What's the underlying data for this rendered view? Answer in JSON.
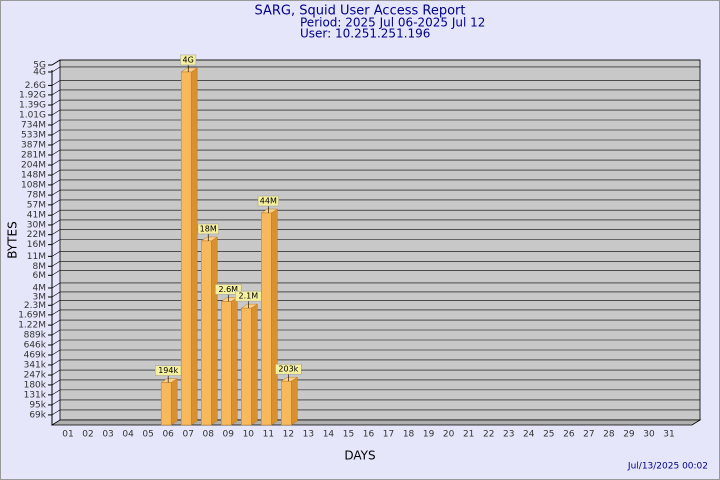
{
  "chart_data": {
    "type": "bar",
    "title": "SARG, Squid User Access Report",
    "subtitle": "Period: 2025 Jul 06-2025 Jul 12",
    "user": "User: 10.251.251.196",
    "xlabel": "DAYS",
    "ylabel": "BYTES",
    "footer": "Jul/13/2025 00:02",
    "categories": [
      "01",
      "02",
      "03",
      "04",
      "05",
      "06",
      "07",
      "08",
      "09",
      "10",
      "11",
      "12",
      "13",
      "14",
      "15",
      "16",
      "17",
      "18",
      "19",
      "20",
      "21",
      "22",
      "23",
      "24",
      "25",
      "26",
      "27",
      "28",
      "29",
      "30",
      "31"
    ],
    "values": [
      null,
      null,
      null,
      null,
      null,
      194000,
      4000000000,
      18000000,
      2600000,
      2100000,
      44000000,
      203000,
      null,
      null,
      null,
      null,
      null,
      null,
      null,
      null,
      null,
      null,
      null,
      null,
      null,
      null,
      null,
      null,
      null,
      null,
      null
    ],
    "value_labels": [
      null,
      null,
      null,
      null,
      null,
      "194k",
      "4G",
      "18M",
      "2.6M",
      "2.1M",
      "44M",
      "203k",
      null,
      null,
      null,
      null,
      null,
      null,
      null,
      null,
      null,
      null,
      null,
      null,
      null,
      null,
      null,
      null,
      null,
      null,
      null
    ],
    "color": "#f7b95c",
    "log_scale": true,
    "grid": true,
    "ylim": [
      50000,
      5000000000
    ],
    "yticks": [
      {
        "value": 69000,
        "label": "69k"
      },
      {
        "value": 95000,
        "label": "95k"
      },
      {
        "value": 131000,
        "label": "131k"
      },
      {
        "value": 180000,
        "label": "180k"
      },
      {
        "value": 247000,
        "label": "247k"
      },
      {
        "value": 341000,
        "label": "341k"
      },
      {
        "value": 469000,
        "label": "469k"
      },
      {
        "value": 646000,
        "label": "646k"
      },
      {
        "value": 889000,
        "label": "889k"
      },
      {
        "value": 1220000,
        "label": "1.22M"
      },
      {
        "value": 1690000,
        "label": "1.69M"
      },
      {
        "value": 2300000,
        "label": "2.3M"
      },
      {
        "value": 3000000,
        "label": "3M"
      },
      {
        "value": 4000000,
        "label": "4M"
      },
      {
        "value": 6000000,
        "label": "6M"
      },
      {
        "value": 8000000,
        "label": "8M"
      },
      {
        "value": 11000000,
        "label": "11M"
      },
      {
        "value": 16000000,
        "label": "16M"
      },
      {
        "value": 22000000,
        "label": "22M"
      },
      {
        "value": 30000000,
        "label": "30M"
      },
      {
        "value": 41000000,
        "label": "41M"
      },
      {
        "value": 57000000,
        "label": "57M"
      },
      {
        "value": 78000000,
        "label": "78M"
      },
      {
        "value": 108000000,
        "label": "108M"
      },
      {
        "value": 148000000,
        "label": "148M"
      },
      {
        "value": 204000000,
        "label": "204M"
      },
      {
        "value": 281000000,
        "label": "281M"
      },
      {
        "value": 387000000,
        "label": "387M"
      },
      {
        "value": 533000000,
        "label": "533M"
      },
      {
        "value": 734000000,
        "label": "734M"
      },
      {
        "value": 1010000000,
        "label": "1.01G"
      },
      {
        "value": 1390000000,
        "label": "1.39G"
      },
      {
        "value": 1920000000,
        "label": "1.92G"
      },
      {
        "value": 2600000000,
        "label": "2.6G"
      },
      {
        "value": 4000000000,
        "label": "4G"
      },
      {
        "value": 5000000000,
        "label": "5G"
      }
    ]
  }
}
